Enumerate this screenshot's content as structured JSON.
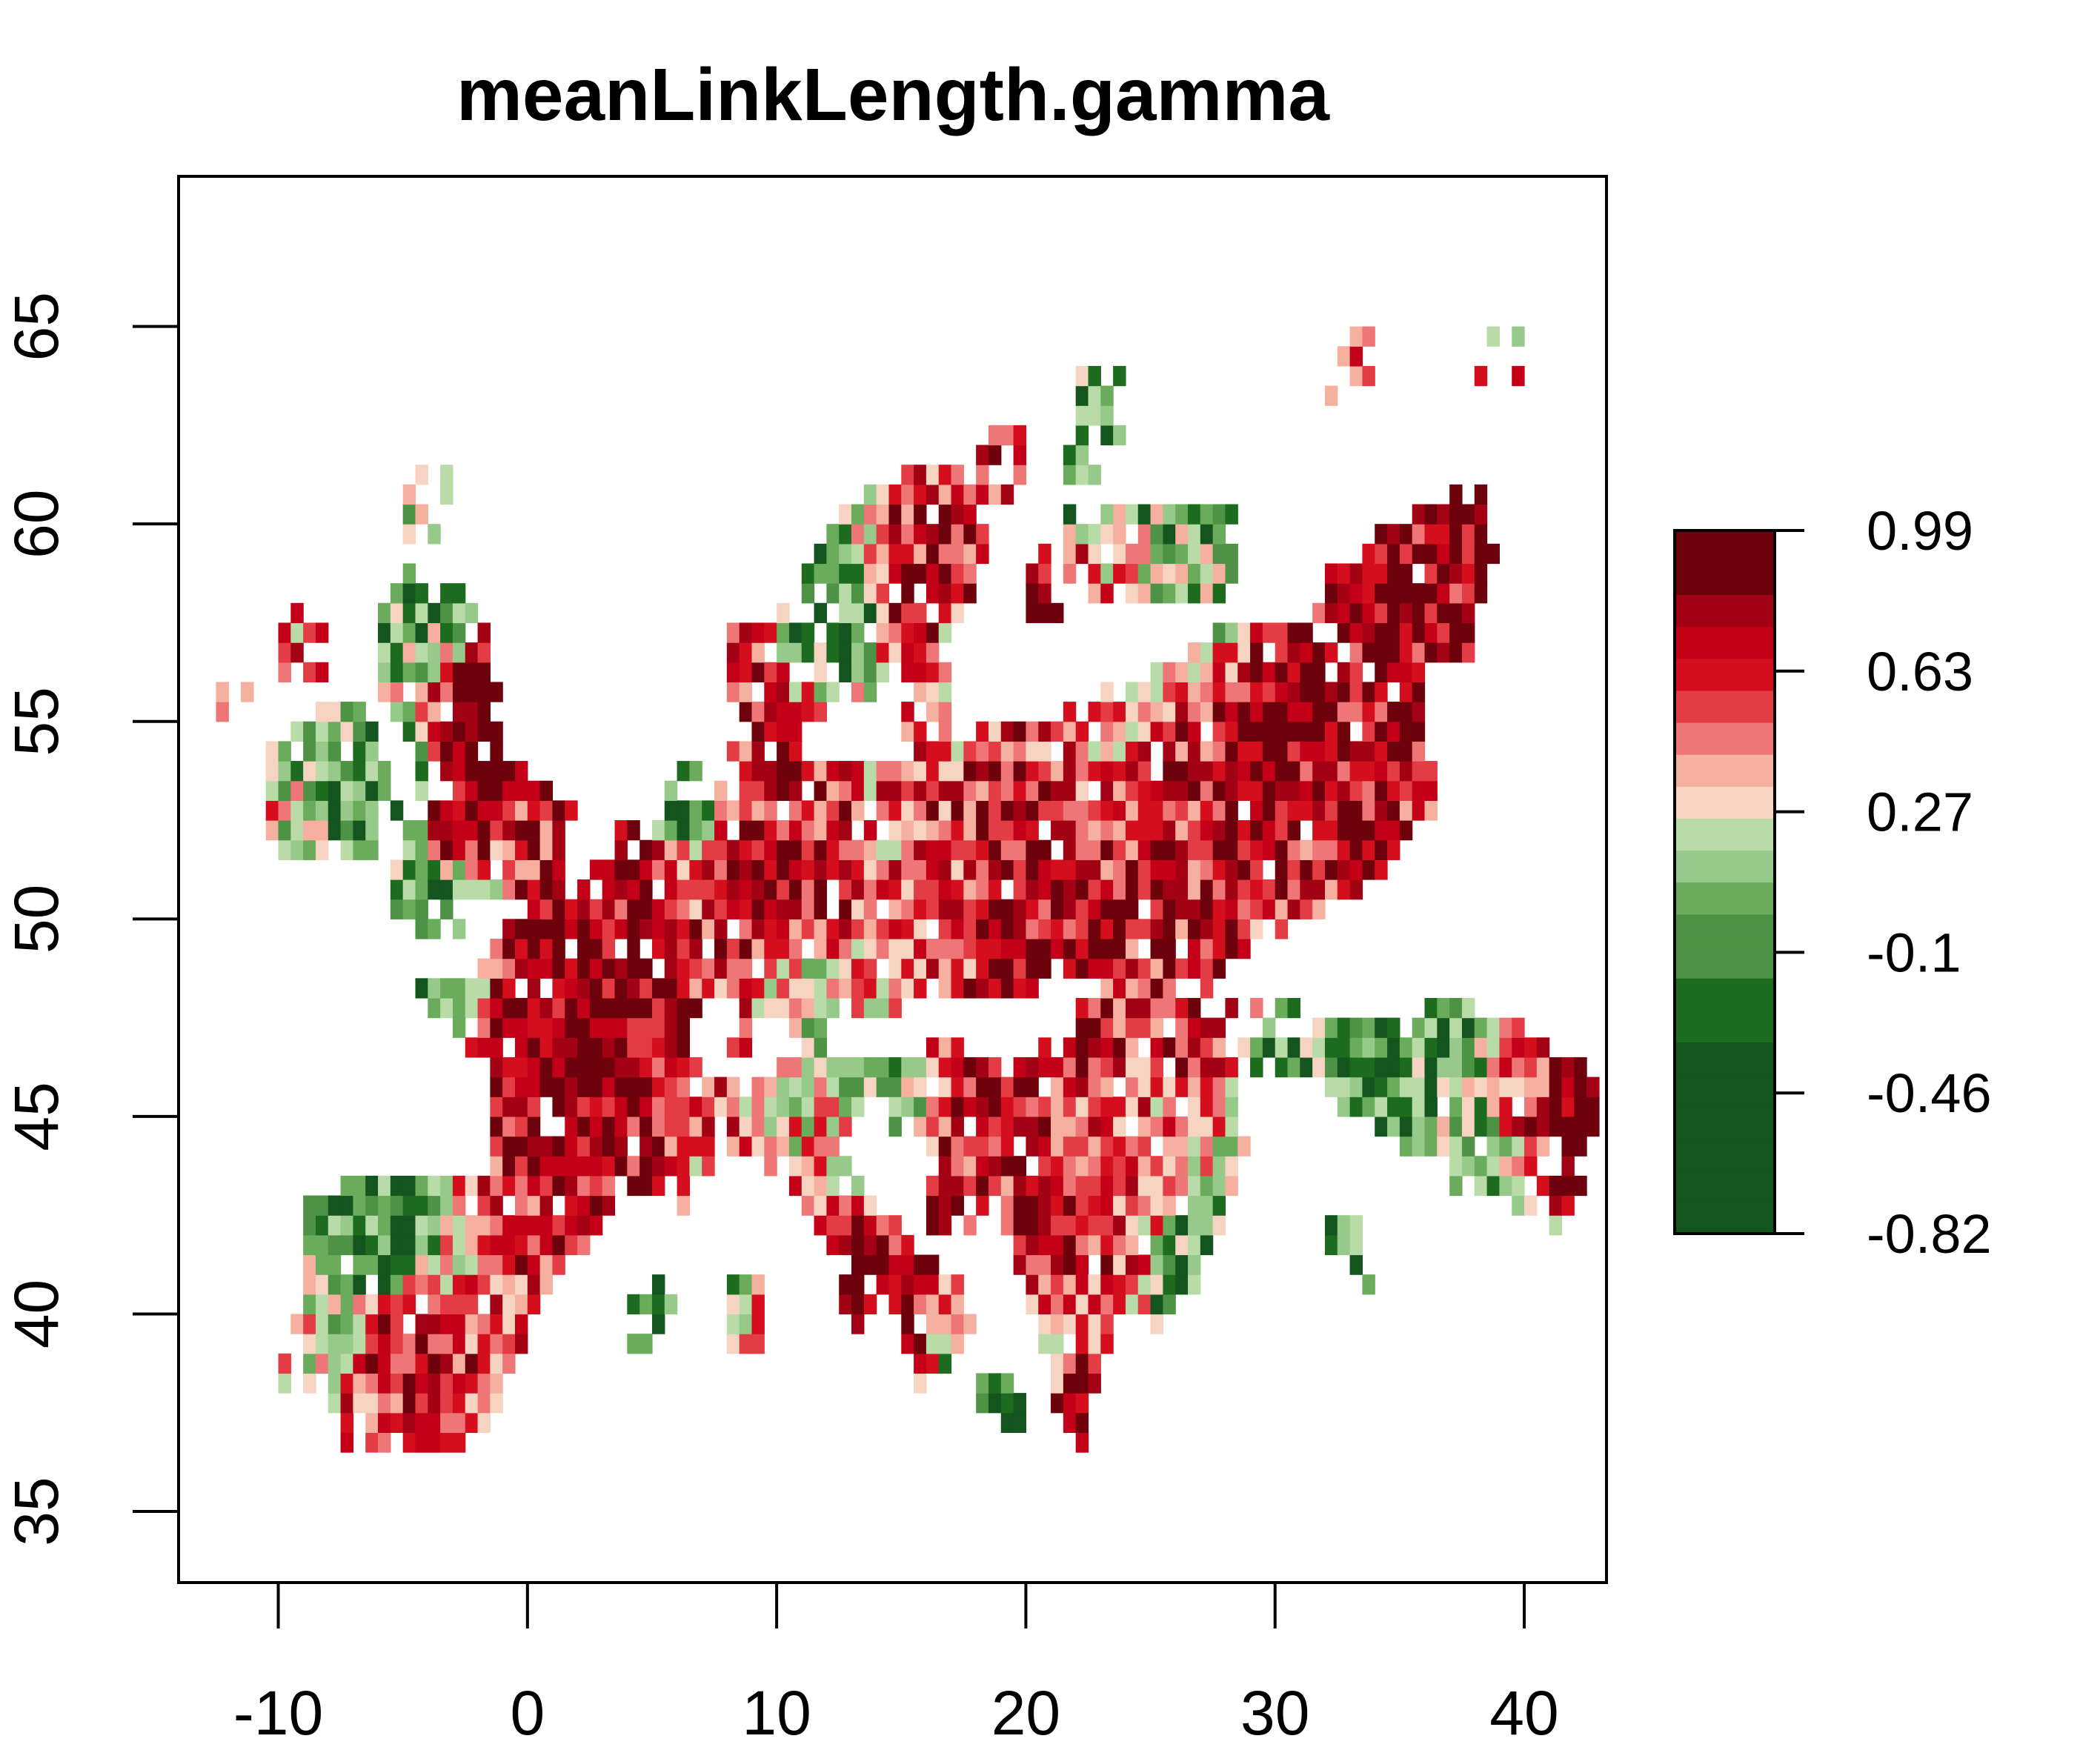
{
  "chart_data": {
    "type": "heatmap",
    "title": "meanLinkLength.gamma",
    "xlabel": "",
    "ylabel": "",
    "xlim": [
      -14.0,
      43.3
    ],
    "ylim": [
      33.2,
      68.8
    ],
    "x_ticks": [
      -10,
      0,
      10,
      20,
      30,
      40
    ],
    "y_ticks": [
      35,
      40,
      45,
      50,
      55,
      60,
      65
    ],
    "grid": false,
    "legend": {
      "position": "right",
      "labels": [
        "0.99",
        "0.63",
        "0.27",
        "-0.1",
        "-0.46",
        "-0.82"
      ],
      "min": -0.82,
      "max": 0.99,
      "colors": [
        "#13541f",
        "#13541f",
        "#13541f",
        "#13541f",
        "#13541f",
        "#13541f",
        "#1d6b1e",
        "#1d6b1e",
        "#4e9345",
        "#4e9345",
        "#6aab5c",
        "#96c98a",
        "#b8dba7",
        "#f7d4c2",
        "#f5b0a0",
        "#ee7676",
        "#e43c44",
        "#d50e1d",
        "#c30017",
        "#a30214",
        "#6d010c",
        "#6d010c"
      ]
    },
    "cell_size": 0.5,
    "palette": [
      "#13541f",
      "#1d6b1e",
      "#4e9345",
      "#6aab5c",
      "#96c98a",
      "#b8dba7",
      "#f7d4c2",
      "#f5b0a0",
      "#ee7676",
      "#e43c44",
      "#d50e1d",
      "#c30017",
      "#a30214",
      "#6d010c"
    ],
    "region_anchors": [
      [
        -12,
        55,
        0.5
      ],
      [
        -8,
        54,
        -0.3
      ],
      [
        -9,
        57,
        0.3
      ],
      [
        -2,
        55,
        0.98
      ],
      [
        -3,
        52.5,
        0.85
      ],
      [
        -4,
        58,
        -0.4
      ],
      [
        -4,
        60.5,
        -0.2
      ],
      [
        -5,
        53,
        -0.6
      ],
      [
        -3.5,
        50.3,
        -0.7
      ],
      [
        1,
        48.5,
        0.95
      ],
      [
        2,
        46,
        0.95
      ],
      [
        4,
        49,
        0.8
      ],
      [
        3,
        44.5,
        0.7
      ],
      [
        6,
        47,
        0.6
      ],
      [
        4.5,
        51.5,
        0.75
      ],
      [
        6,
        53,
        -0.5
      ],
      [
        9,
        51,
        0.75
      ],
      [
        9,
        54,
        0.6
      ],
      [
        9,
        47.5,
        0.4
      ],
      [
        12,
        51.5,
        0.65
      ],
      [
        11,
        47.5,
        -0.2
      ],
      [
        14,
        52,
        0.3
      ],
      [
        16,
        50,
        0.4
      ],
      [
        19,
        52,
        0.6
      ],
      [
        21,
        50,
        0.75
      ],
      [
        16,
        55.5,
        0.3
      ],
      [
        13,
        58,
        -0.6
      ],
      [
        15,
        58.5,
        0.7
      ],
      [
        21,
        58.5,
        0.8
      ],
      [
        19,
        61.5,
        0.6
      ],
      [
        22,
        61,
        -0.5
      ],
      [
        24,
        55,
        0.3
      ],
      [
        26,
        53,
        0.6
      ],
      [
        30,
        54.5,
        0.85
      ],
      [
        33,
        53,
        0.7
      ],
      [
        34,
        58,
        0.8
      ],
      [
        28,
        48,
        0.7
      ],
      [
        30,
        47,
        -0.4
      ],
      [
        34,
        46,
        -0.6
      ],
      [
        37,
        47,
        -0.4
      ],
      [
        40,
        46,
        0.5
      ],
      [
        42,
        45.5,
        0.95
      ],
      [
        38,
        44,
        -0.3
      ],
      [
        15,
        45.5,
        -0.3
      ],
      [
        18,
        46,
        0.75
      ],
      [
        17,
        43,
        0.65
      ],
      [
        21,
        42,
        0.65
      ],
      [
        24,
        41,
        0.5
      ],
      [
        26,
        40.5,
        -0.6
      ],
      [
        -6,
        42,
        -0.6
      ],
      [
        -5,
        39,
        0.65
      ],
      [
        -9,
        39,
        -0.1
      ],
      [
        -7,
        37.5,
        0.3
      ],
      [
        1,
        42.3,
        0.5
      ],
      [
        23,
        63,
        -0.4
      ],
      [
        33,
        64,
        0.4
      ],
      [
        39,
        64,
        0.2
      ],
      [
        38,
        60,
        0.8
      ],
      [
        27,
        59,
        -0.3
      ],
      [
        33,
        41.5,
        -0.5
      ],
      [
        13.5,
        40,
        0.99
      ],
      [
        19,
        38,
        -0.7
      ],
      [
        22.5,
        37,
        0.9
      ],
      [
        5,
        40,
        -0.6
      ]
    ],
    "land_polygons": [
      [
        [
          -10.2,
          51.6
        ],
        [
          -6.2,
          51.6
        ],
        [
          -5.8,
          54.4
        ],
        [
          -6.2,
          55.2
        ],
        [
          -8.2,
          55.4
        ],
        [
          -10.4,
          54.2
        ]
      ],
      [
        [
          -5.8,
          50.0
        ],
        [
          1.6,
          50.8
        ],
        [
          1.8,
          52.8
        ],
        [
          0.2,
          53.6
        ],
        [
          -1.4,
          55.2
        ],
        [
          -1.8,
          57.8
        ],
        [
          -3.4,
          58.7
        ],
        [
          -5.4,
          58.5
        ],
        [
          -6.4,
          56.6
        ],
        [
          -5.4,
          55.2
        ],
        [
          -4.2,
          54.2
        ],
        [
          -3.2,
          53.2
        ],
        [
          -5.2,
          51.6
        ]
      ],
      [
        [
          -4.8,
          48.5
        ],
        [
          -1.4,
          46.0
        ],
        [
          -1.6,
          43.3
        ],
        [
          3.2,
          42.6
        ],
        [
          7.6,
          43.8
        ],
        [
          7.6,
          45.6
        ],
        [
          6.2,
          47.4
        ],
        [
          8.2,
          49.0
        ],
        [
          6.2,
          50.3
        ],
        [
          3.4,
          51.4
        ],
        [
          1.6,
          51.0
        ],
        [
          -1.2,
          49.6
        ],
        [
          -2.2,
          48.6
        ]
      ],
      [
        [
          -9.2,
          43.2
        ],
        [
          -1.6,
          43.5
        ],
        [
          3.2,
          42.4
        ],
        [
          0.4,
          40.4
        ],
        [
          -0.4,
          38.6
        ],
        [
          -2.2,
          36.8
        ],
        [
          -5.4,
          36.2
        ],
        [
          -7.2,
          37.2
        ],
        [
          -9.0,
          38.6
        ],
        [
          -8.8,
          42.0
        ]
      ],
      [
        [
          3.2,
          51.4
        ],
        [
          8.2,
          53.6
        ],
        [
          8.8,
          55.0
        ],
        [
          10.6,
          56.0
        ],
        [
          11.0,
          54.2
        ],
        [
          14.2,
          54.0
        ],
        [
          18.2,
          54.8
        ],
        [
          24.2,
          55.8
        ],
        [
          28.2,
          57.6
        ],
        [
          32.0,
          57.2
        ],
        [
          36.0,
          56.2
        ],
        [
          36.4,
          52.8
        ],
        [
          34.2,
          51.0
        ],
        [
          30.2,
          49.6
        ],
        [
          26.4,
          48.4
        ],
        [
          24.2,
          47.8
        ],
        [
          22.2,
          48.6
        ],
        [
          19.2,
          48.0
        ],
        [
          17.2,
          48.2
        ],
        [
          14.6,
          47.6
        ],
        [
          12.4,
          47.6
        ],
        [
          9.6,
          47.6
        ],
        [
          8.0,
          47.6
        ],
        [
          6.2,
          49.4
        ]
      ],
      [
        [
          7.0,
          46.0
        ],
        [
          13.6,
          46.6
        ],
        [
          13.8,
          45.6
        ],
        [
          12.4,
          44.2
        ],
        [
          14.2,
          42.6
        ],
        [
          16.2,
          41.4
        ],
        [
          18.4,
          40.2
        ],
        [
          16.6,
          38.4
        ],
        [
          15.6,
          38.0
        ],
        [
          14.8,
          40.2
        ],
        [
          12.4,
          41.6
        ],
        [
          10.6,
          43.2
        ],
        [
          8.2,
          44.2
        ]
      ],
      [
        [
          13.6,
          46.4
        ],
        [
          16.6,
          46.8
        ],
        [
          19.2,
          46.0
        ],
        [
          22.2,
          47.8
        ],
        [
          26.4,
          48.2
        ],
        [
          28.4,
          46.6
        ],
        [
          28.8,
          44.2
        ],
        [
          28.0,
          42.2
        ],
        [
          26.2,
          40.8
        ],
        [
          24.2,
          40.2
        ],
        [
          22.8,
          38.2
        ],
        [
          21.4,
          37.2
        ],
        [
          20.4,
          39.8
        ],
        [
          19.4,
          41.8
        ],
        [
          17.8,
          43.0
        ],
        [
          15.4,
          44.6
        ]
      ],
      [
        [
          28.4,
          46.8
        ],
        [
          34.2,
          47.6
        ],
        [
          38.4,
          47.6
        ],
        [
          40.2,
          47.2
        ],
        [
          42.8,
          46.2
        ],
        [
          42.6,
          43.6
        ],
        [
          41.4,
          42.0
        ],
        [
          38.2,
          43.4
        ],
        [
          35.0,
          44.2
        ],
        [
          33.6,
          44.6
        ],
        [
          31.0,
          46.4
        ]
      ],
      [
        [
          7.8,
          57.4
        ],
        [
          8.4,
          54.8
        ],
        [
          10.4,
          54.6
        ],
        [
          12.6,
          55.6
        ],
        [
          11.4,
          57.6
        ],
        [
          10.4,
          57.8
        ]
      ],
      [
        [
          11.0,
          58.6
        ],
        [
          13.0,
          55.4
        ],
        [
          16.4,
          56.4
        ],
        [
          18.6,
          59.4
        ],
        [
          17.4,
          61.4
        ],
        [
          14.4,
          61.2
        ],
        [
          12.4,
          60.2
        ]
      ],
      [
        [
          21.6,
          59.8
        ],
        [
          22.6,
          58.2
        ],
        [
          28.2,
          58.0
        ],
        [
          28.4,
          60.4
        ],
        [
          23.4,
          60.4
        ]
      ],
      [
        [
          32.2,
          59.0
        ],
        [
          36.4,
          60.6
        ],
        [
          38.4,
          60.4
        ],
        [
          38.2,
          56.6
        ],
        [
          34.0,
          56.6
        ],
        [
          31.6,
          57.6
        ]
      ],
      [
        [
          5.8,
          44.6
        ],
        [
          6.4,
          44.6
        ],
        [
          6.4,
          42.4
        ],
        [
          5.8,
          42.4
        ]
      ],
      [
        [
          8.2,
          41.2
        ],
        [
          9.6,
          41.2
        ],
        [
          9.6,
          38.8
        ],
        [
          8.2,
          38.8
        ]
      ]
    ]
  }
}
